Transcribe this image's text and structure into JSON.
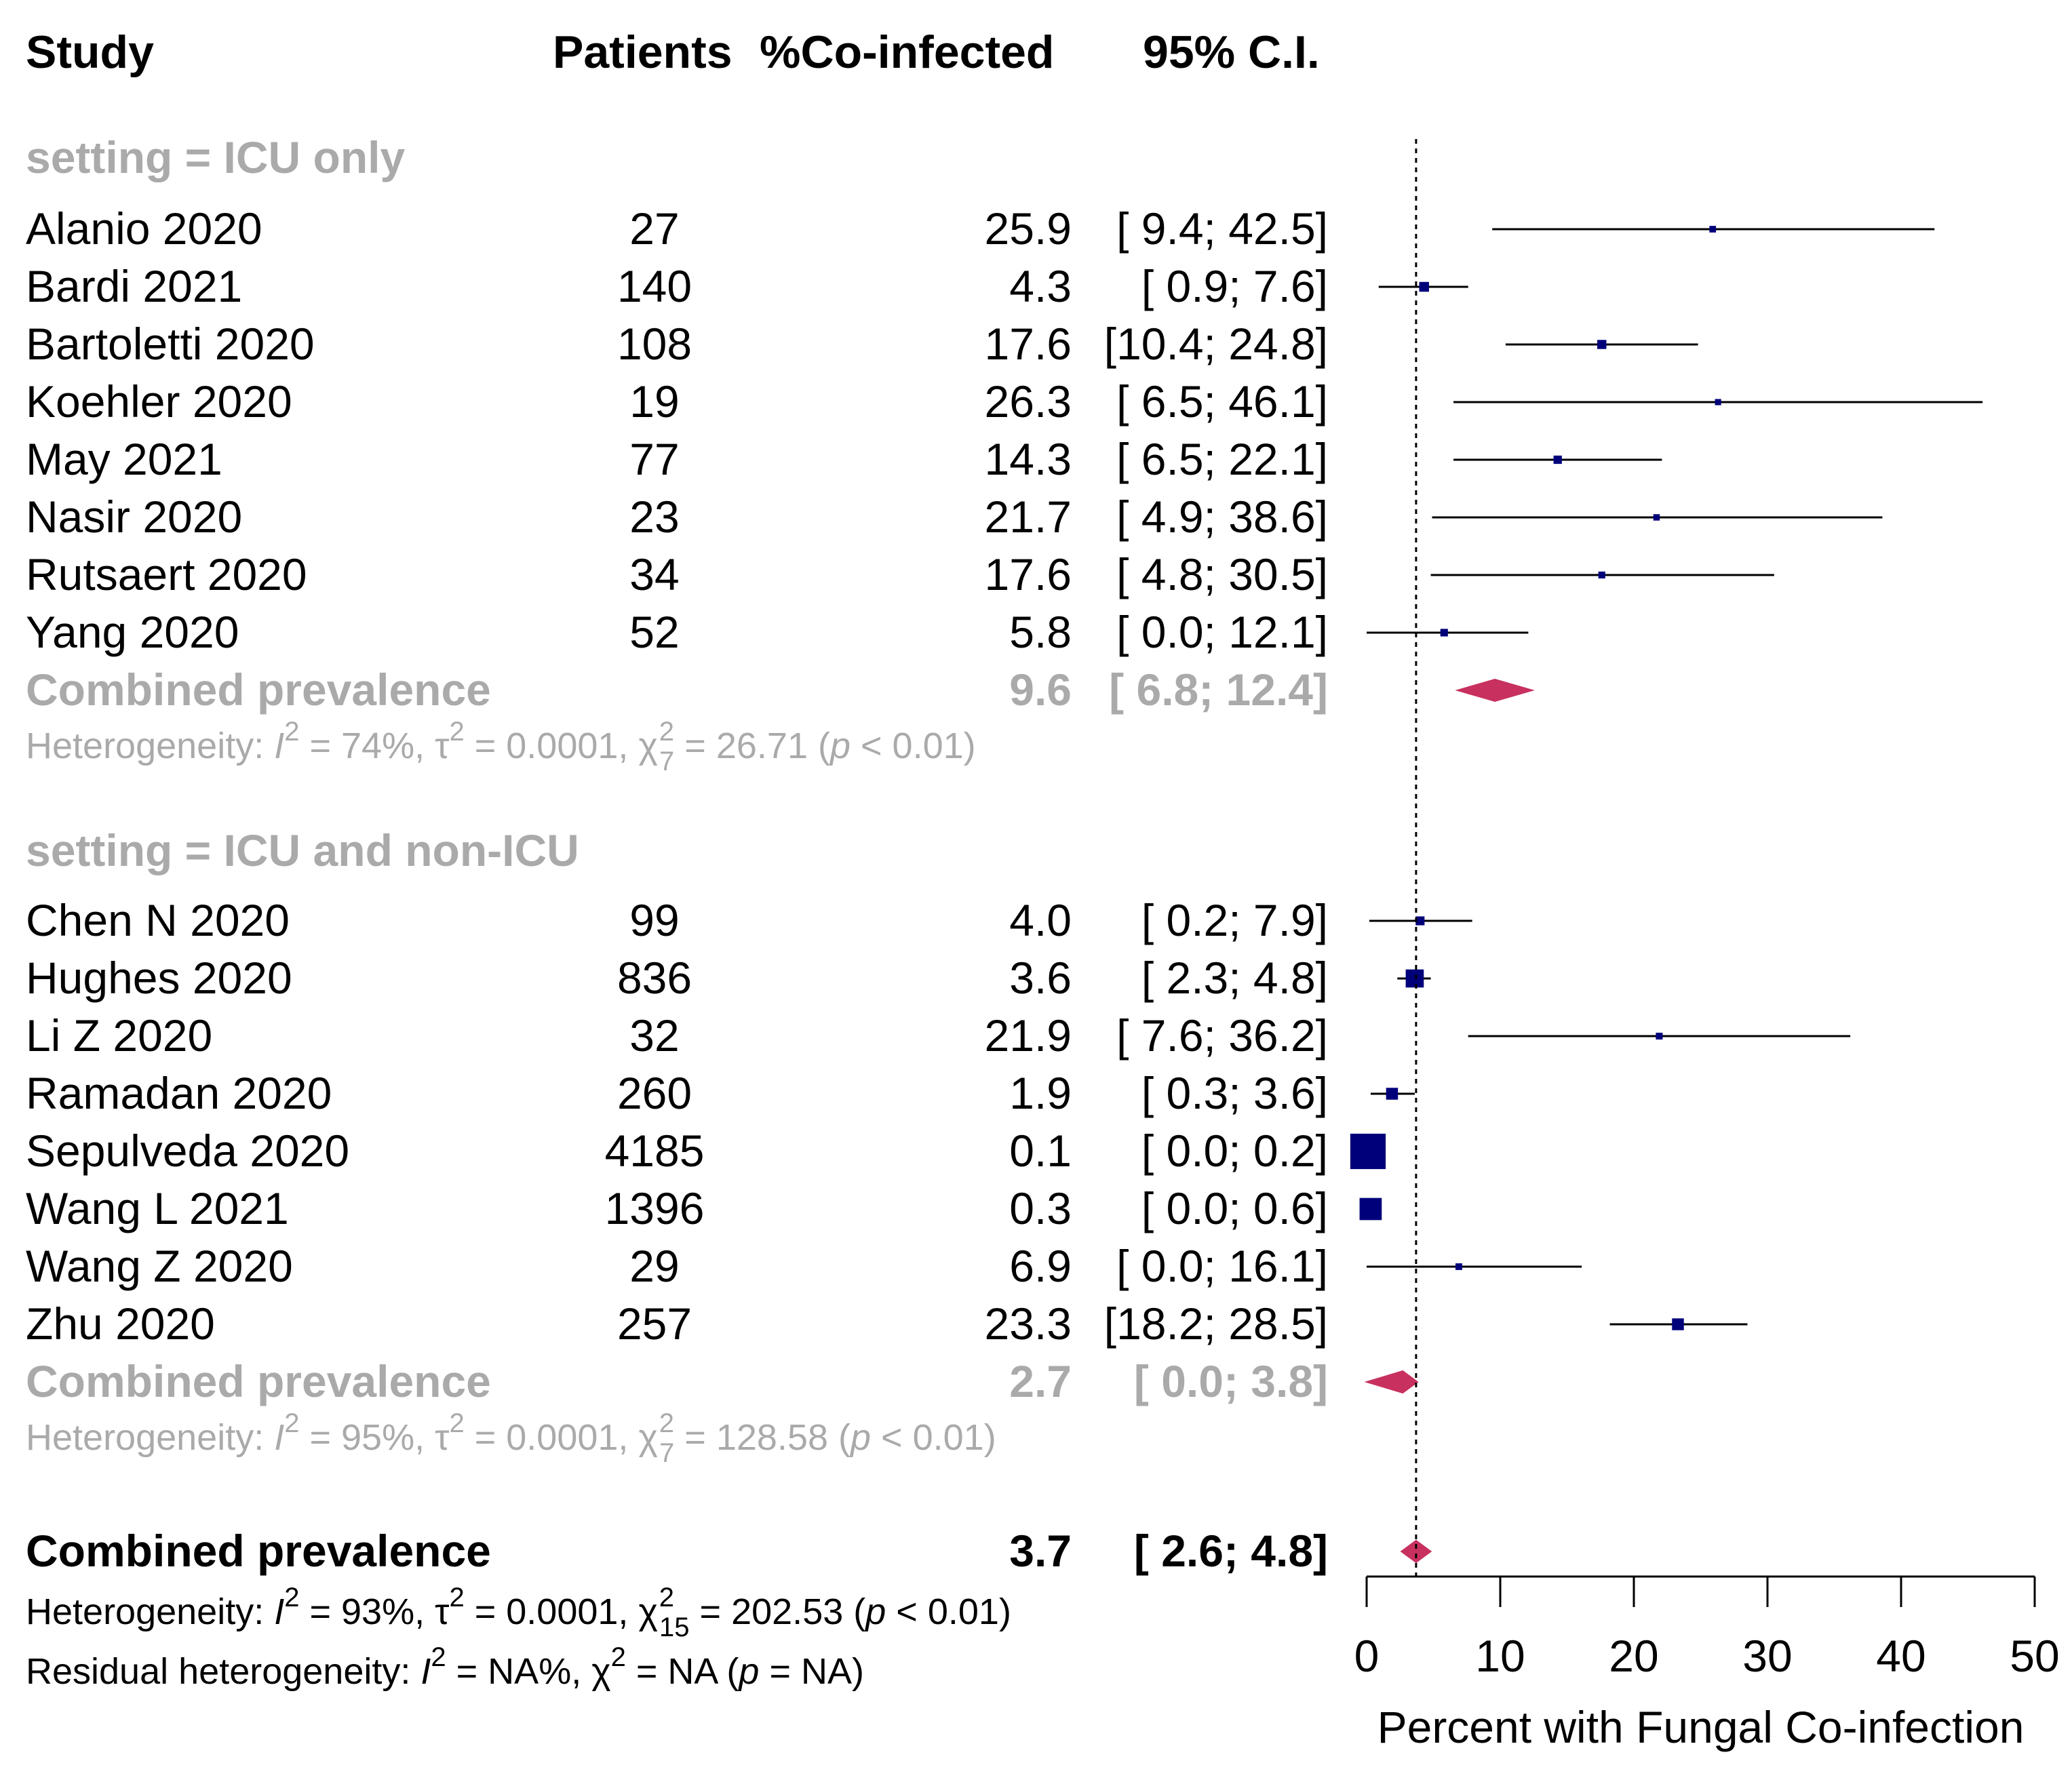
{
  "headers": {
    "study": "Study",
    "patients": "Patients",
    "percent": "%Co-infected",
    "ci": "95% C.I."
  },
  "colors": {
    "study_marker": "#00007a",
    "diamond": "#c8305f",
    "subgroup_text": "#aaaaaa",
    "text": "#000000"
  },
  "chart_data": {
    "type": "forest",
    "xlabel": "Percent with Fungal Co-infection",
    "xlim": [
      0,
      50
    ],
    "xticks": [
      "0",
      "10",
      "20",
      "30",
      "40",
      "50"
    ],
    "reference_line": 3.7,
    "groups": [
      {
        "label": "setting = ICU only",
        "studies": [
          {
            "study": "Alanio 2020",
            "patients": "27",
            "est_text": "25.9",
            "ci_text": "[ 9.4; 42.5]",
            "est": 25.9,
            "lo": 9.4,
            "hi": 42.5
          },
          {
            "study": "Bardi 2021",
            "patients": "140",
            "est_text": "4.3",
            "ci_text": "[ 0.9;  7.6]",
            "est": 4.3,
            "lo": 0.9,
            "hi": 7.6
          },
          {
            "study": "Bartoletti 2020",
            "patients": "108",
            "est_text": "17.6",
            "ci_text": "[10.4; 24.8]",
            "est": 17.6,
            "lo": 10.4,
            "hi": 24.8
          },
          {
            "study": "Koehler 2020",
            "patients": "19",
            "est_text": "26.3",
            "ci_text": "[ 6.5; 46.1]",
            "est": 26.3,
            "lo": 6.5,
            "hi": 46.1
          },
          {
            "study": "May 2021",
            "patients": "77",
            "est_text": "14.3",
            "ci_text": "[ 6.5; 22.1]",
            "est": 14.3,
            "lo": 6.5,
            "hi": 22.1
          },
          {
            "study": "Nasir 2020",
            "patients": "23",
            "est_text": "21.7",
            "ci_text": "[ 4.9; 38.6]",
            "est": 21.7,
            "lo": 4.9,
            "hi": 38.6
          },
          {
            "study": "Rutsaert 2020",
            "patients": "34",
            "est_text": "17.6",
            "ci_text": "[ 4.8; 30.5]",
            "est": 17.6,
            "lo": 4.8,
            "hi": 30.5
          },
          {
            "study": "Yang 2020",
            "patients": "52",
            "est_text": "5.8",
            "ci_text": "[ 0.0; 12.1]",
            "est": 5.8,
            "lo": 0.0,
            "hi": 12.1
          }
        ],
        "combined": {
          "label": "Combined prevalence",
          "est_text": "9.6",
          "ci_text": "[ 6.8; 12.4]",
          "est": 9.6,
          "lo": 6.8,
          "hi": 12.4
        },
        "heterogeneity": {
          "prefix": "Heterogeneity: ",
          "I": "I",
          "I2_sup": "2",
          "I2_val": " = 74%, ",
          "tau": "τ",
          "tau_sup": "2",
          "tau_val": " = 0.0001, ",
          "chi": "χ",
          "chi_sup": "2",
          "chi_sub": "7",
          "chi_val": " = 26.71 (",
          "p": "p",
          "p_val": " < 0.01)"
        }
      },
      {
        "label": "setting = ICU and non-ICU",
        "studies": [
          {
            "study": "Chen N 2020",
            "patients": "99",
            "est_text": "4.0",
            "ci_text": "[ 0.2;  7.9]",
            "est": 4.0,
            "lo": 0.2,
            "hi": 7.9
          },
          {
            "study": "Hughes 2020",
            "patients": "836",
            "est_text": "3.6",
            "ci_text": "[ 2.3;  4.8]",
            "est": 3.6,
            "lo": 2.3,
            "hi": 4.8
          },
          {
            "study": "Li Z 2020",
            "patients": "32",
            "est_text": "21.9",
            "ci_text": "[ 7.6; 36.2]",
            "est": 21.9,
            "lo": 7.6,
            "hi": 36.2
          },
          {
            "study": "Ramadan 2020",
            "patients": "260",
            "est_text": "1.9",
            "ci_text": "[ 0.3;  3.6]",
            "est": 1.9,
            "lo": 0.3,
            "hi": 3.6
          },
          {
            "study": "Sepulveda 2020",
            "patients": "4185",
            "est_text": "0.1",
            "ci_text": "[ 0.0;  0.2]",
            "est": 0.1,
            "lo": 0.0,
            "hi": 0.2
          },
          {
            "study": "Wang L 2021",
            "patients": "1396",
            "est_text": "0.3",
            "ci_text": "[ 0.0;  0.6]",
            "est": 0.3,
            "lo": 0.0,
            "hi": 0.6
          },
          {
            "study": "Wang Z 2020",
            "patients": "29",
            "est_text": "6.9",
            "ci_text": "[ 0.0; 16.1]",
            "est": 6.9,
            "lo": 0.0,
            "hi": 16.1
          },
          {
            "study": "Zhu 2020",
            "patients": "257",
            "est_text": "23.3",
            "ci_text": "[18.2; 28.5]",
            "est": 23.3,
            "lo": 18.2,
            "hi": 28.5
          }
        ],
        "combined": {
          "label": "Combined prevalence",
          "est_text": "2.7",
          "ci_text": "[ 0.0;  3.8]",
          "est": 2.7,
          "lo": 0.0,
          "hi": 3.8
        },
        "heterogeneity": {
          "prefix": "Heterogeneity: ",
          "I": "I",
          "I2_sup": "2",
          "I2_val": " = 95%, ",
          "tau": "τ",
          "tau_sup": "2",
          "tau_val": " = 0.0001, ",
          "chi": "χ",
          "chi_sup": "2",
          "chi_sub": "7",
          "chi_val": " = 128.58 (",
          "p": "p",
          "p_val": " < 0.01)"
        }
      }
    ],
    "overall": {
      "label": "Combined prevalence",
      "est_text": "3.7",
      "ci_text": "[ 2.6;  4.8]",
      "est": 3.7,
      "lo": 2.6,
      "hi": 4.8,
      "heterogeneity": {
        "prefix": "Heterogeneity: ",
        "I": "I",
        "I2_sup": "2",
        "I2_val": " = 93%, ",
        "tau": "τ",
        "tau_sup": "2",
        "tau_val": " = 0.0001, ",
        "chi": "χ",
        "chi_sup": "2",
        "chi_sub": "15",
        "chi_val": " = 202.53 (",
        "p": "p",
        "p_val": " < 0.01)"
      },
      "residual": {
        "prefix": "Residual heterogeneity: ",
        "I": "I",
        "I2_sup": "2",
        "I2_val": " = NA%, ",
        "chi": "χ",
        "chi_sup": "2",
        "chi_val": " = NA (",
        "p": "p",
        "p_val": " = NA)"
      }
    }
  }
}
